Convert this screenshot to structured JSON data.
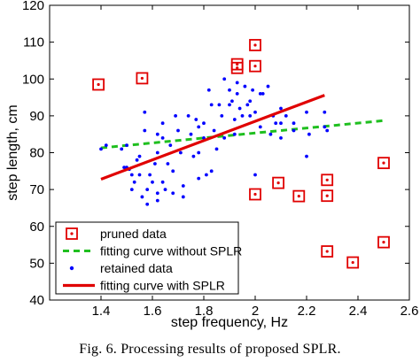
{
  "caption": "Fig. 6.   Processing results of proposed SPLR.",
  "chart_data": {
    "type": "scatter",
    "title": "",
    "xlabel": "step frequency, Hz",
    "ylabel": "step length, cm",
    "xlim": [
      1.2,
      2.6
    ],
    "ylim": [
      40,
      120
    ],
    "xticks": [
      1.4,
      1.6,
      1.8,
      2,
      2.2,
      2.4,
      2.6
    ],
    "yticks": [
      40,
      50,
      60,
      70,
      80,
      90,
      100,
      110,
      120
    ],
    "xtick_labels": [
      "1.4",
      "1.6",
      "1.8",
      "2",
      "2.2",
      "2.4",
      "2.6"
    ],
    "ytick_labels": [
      "40",
      "50",
      "60",
      "70",
      "80",
      "90",
      "100",
      "110",
      "120"
    ],
    "grid": false,
    "legend_position": "bottom-left",
    "colors": {
      "pruned": "#e00000",
      "retained": "#0000ff",
      "without_splr": "#1fbf1f",
      "with_splr": "#e00000"
    },
    "series": [
      {
        "name": "pruned data",
        "kind": "scatter",
        "marker": "square-dot",
        "points": [
          [
            1.39,
            98.5
          ],
          [
            1.56,
            100.2
          ],
          [
            1.93,
            104.0
          ],
          [
            1.93,
            103.0
          ],
          [
            2.0,
            109.2
          ],
          [
            2.0,
            103.5
          ],
          [
            2.0,
            68.7
          ],
          [
            2.09,
            71.8
          ],
          [
            2.17,
            68.2
          ],
          [
            2.28,
            72.6
          ],
          [
            2.28,
            68.3
          ],
          [
            2.28,
            53.2
          ],
          [
            2.38,
            50.2
          ],
          [
            2.5,
            77.2
          ],
          [
            2.5,
            55.7
          ]
        ]
      },
      {
        "name": "fitting curve without SPLR",
        "kind": "line",
        "style": "dashed",
        "points": [
          [
            1.4,
            81.3
          ],
          [
            2.5,
            88.7
          ]
        ]
      },
      {
        "name": "retained data",
        "kind": "scatter",
        "marker": "dot",
        "points": [
          [
            1.4,
            81
          ],
          [
            1.42,
            82
          ],
          [
            1.48,
            81
          ],
          [
            1.49,
            76
          ],
          [
            1.5,
            82
          ],
          [
            1.5,
            76
          ],
          [
            1.51,
            75.5
          ],
          [
            1.52,
            74
          ],
          [
            1.52,
            70
          ],
          [
            1.53,
            72
          ],
          [
            1.54,
            78
          ],
          [
            1.55,
            79
          ],
          [
            1.55,
            74
          ],
          [
            1.56,
            68
          ],
          [
            1.57,
            91
          ],
          [
            1.57,
            86
          ],
          [
            1.58,
            70
          ],
          [
            1.58,
            66
          ],
          [
            1.59,
            74
          ],
          [
            1.6,
            72
          ],
          [
            1.61,
            77
          ],
          [
            1.62,
            85
          ],
          [
            1.62,
            80
          ],
          [
            1.62,
            69
          ],
          [
            1.62,
            67
          ],
          [
            1.64,
            88
          ],
          [
            1.64,
            84
          ],
          [
            1.64,
            72
          ],
          [
            1.65,
            70
          ],
          [
            1.66,
            77
          ],
          [
            1.67,
            82
          ],
          [
            1.68,
            75
          ],
          [
            1.68,
            69
          ],
          [
            1.69,
            90
          ],
          [
            1.7,
            86
          ],
          [
            1.71,
            80
          ],
          [
            1.72,
            71
          ],
          [
            1.72,
            68
          ],
          [
            1.74,
            90
          ],
          [
            1.75,
            85
          ],
          [
            1.76,
            79
          ],
          [
            1.77,
            89
          ],
          [
            1.78,
            87
          ],
          [
            1.78,
            80
          ],
          [
            1.78,
            73
          ],
          [
            1.8,
            88
          ],
          [
            1.8,
            84
          ],
          [
            1.81,
            74
          ],
          [
            1.82,
            97
          ],
          [
            1.83,
            93
          ],
          [
            1.83,
            75
          ],
          [
            1.84,
            86
          ],
          [
            1.85,
            81
          ],
          [
            1.86,
            93
          ],
          [
            1.87,
            90
          ],
          [
            1.88,
            84
          ],
          [
            1.88,
            100
          ],
          [
            1.9,
            93
          ],
          [
            1.9,
            97
          ],
          [
            1.91,
            94
          ],
          [
            1.92,
            89
          ],
          [
            1.92,
            85
          ],
          [
            1.93,
            99
          ],
          [
            1.93,
            96
          ],
          [
            1.94,
            92
          ],
          [
            1.95,
            90
          ],
          [
            1.96,
            98
          ],
          [
            1.97,
            93
          ],
          [
            1.98,
            90
          ],
          [
            1.98,
            94
          ],
          [
            1.99,
            97
          ],
          [
            2.0,
            91
          ],
          [
            2.0,
            74
          ],
          [
            2.02,
            96
          ],
          [
            2.02,
            87
          ],
          [
            2.03,
            96
          ],
          [
            2.05,
            98
          ],
          [
            2.06,
            85
          ],
          [
            2.07,
            90
          ],
          [
            2.08,
            88
          ],
          [
            2.1,
            92
          ],
          [
            2.1,
            88
          ],
          [
            2.1,
            84
          ],
          [
            2.12,
            90
          ],
          [
            2.15,
            88
          ],
          [
            2.15,
            86
          ],
          [
            2.2,
            91
          ],
          [
            2.2,
            79
          ],
          [
            2.21,
            85
          ],
          [
            2.27,
            91
          ],
          [
            2.27,
            87
          ],
          [
            2.28,
            86
          ]
        ]
      },
      {
        "name": "fitting curve with SPLR",
        "kind": "line",
        "style": "solid",
        "points": [
          [
            1.4,
            72.8
          ],
          [
            2.27,
            95.6
          ]
        ]
      }
    ]
  }
}
